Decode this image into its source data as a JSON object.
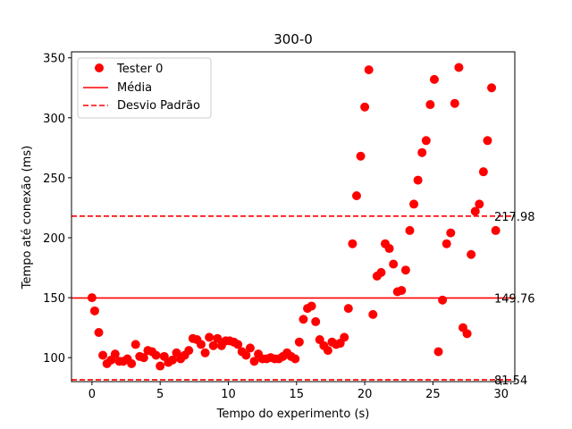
{
  "chart_data": {
    "type": "scatter",
    "title": "300-0",
    "xlabel": "Tempo do experimento (s)",
    "ylabel": "Tempo até conexão (ms)",
    "xlim": [
      -1.5,
      31.0
    ],
    "ylim": [
      80,
      355
    ],
    "xticks": [
      0,
      5,
      10,
      15,
      20,
      25,
      30
    ],
    "yticks": [
      100,
      150,
      200,
      250,
      300,
      350
    ],
    "grid": false,
    "legend_position": "top-left",
    "colors": {
      "points": "#ff0000",
      "lines": "#ff0000"
    },
    "series": [
      {
        "name": "Tester 0",
        "points": [
          [
            0.0,
            150
          ],
          [
            0.2,
            139
          ],
          [
            0.5,
            121
          ],
          [
            0.8,
            102
          ],
          [
            1.1,
            95
          ],
          [
            1.4,
            98
          ],
          [
            1.7,
            103
          ],
          [
            2.0,
            97
          ],
          [
            2.3,
            97
          ],
          [
            2.6,
            99
          ],
          [
            2.9,
            95
          ],
          [
            3.2,
            111
          ],
          [
            3.5,
            101
          ],
          [
            3.8,
            100
          ],
          [
            4.1,
            106
          ],
          [
            4.4,
            105
          ],
          [
            4.7,
            102
          ],
          [
            5.0,
            93
          ],
          [
            5.3,
            101
          ],
          [
            5.6,
            96
          ],
          [
            5.9,
            98
          ],
          [
            6.2,
            104
          ],
          [
            6.5,
            99
          ],
          [
            6.8,
            102
          ],
          [
            7.1,
            106
          ],
          [
            7.4,
            116
          ],
          [
            7.7,
            115
          ],
          [
            8.0,
            111
          ],
          [
            8.3,
            104
          ],
          [
            8.6,
            117
          ],
          [
            8.9,
            110
          ],
          [
            9.2,
            116
          ],
          [
            9.5,
            110
          ],
          [
            9.8,
            114
          ],
          [
            10.1,
            114
          ],
          [
            10.4,
            113
          ],
          [
            10.7,
            111
          ],
          [
            11.0,
            105
          ],
          [
            11.3,
            102
          ],
          [
            11.6,
            108
          ],
          [
            11.9,
            97
          ],
          [
            12.2,
            103
          ],
          [
            12.5,
            99
          ],
          [
            12.8,
            99
          ],
          [
            13.1,
            100
          ],
          [
            13.4,
            99
          ],
          [
            13.7,
            99
          ],
          [
            14.0,
            101
          ],
          [
            14.3,
            104
          ],
          [
            14.6,
            101
          ],
          [
            14.9,
            99
          ],
          [
            15.2,
            113
          ],
          [
            15.5,
            132
          ],
          [
            15.8,
            141
          ],
          [
            16.1,
            143
          ],
          [
            16.4,
            130
          ],
          [
            16.7,
            115
          ],
          [
            17.0,
            110
          ],
          [
            17.3,
            106
          ],
          [
            17.6,
            113
          ],
          [
            17.9,
            111
          ],
          [
            18.2,
            112
          ],
          [
            18.5,
            117
          ],
          [
            18.8,
            141
          ],
          [
            19.1,
            195
          ],
          [
            19.4,
            235
          ],
          [
            19.7,
            268
          ],
          [
            20.0,
            309
          ],
          [
            20.3,
            340
          ],
          [
            20.6,
            136
          ],
          [
            20.9,
            168
          ],
          [
            21.2,
            171
          ],
          [
            21.5,
            195
          ],
          [
            21.8,
            191
          ],
          [
            22.1,
            178
          ],
          [
            22.4,
            155
          ],
          [
            22.7,
            156
          ],
          [
            23.0,
            173
          ],
          [
            23.3,
            206
          ],
          [
            23.6,
            228
          ],
          [
            23.9,
            248
          ],
          [
            24.2,
            271
          ],
          [
            24.5,
            281
          ],
          [
            24.8,
            311
          ],
          [
            25.1,
            332
          ],
          [
            25.4,
            105
          ],
          [
            25.7,
            148
          ],
          [
            26.0,
            195
          ],
          [
            26.3,
            204
          ],
          [
            26.6,
            312
          ],
          [
            26.9,
            342
          ],
          [
            27.2,
            125
          ],
          [
            27.5,
            120
          ],
          [
            27.8,
            186
          ],
          [
            28.1,
            222
          ],
          [
            28.4,
            228
          ],
          [
            28.7,
            255
          ],
          [
            29.0,
            281
          ],
          [
            29.3,
            325
          ],
          [
            29.6,
            206
          ]
        ]
      }
    ],
    "reference_lines": [
      {
        "name": "Média",
        "value": 149.76,
        "label": "149.76",
        "style": "solid"
      },
      {
        "name": "Desvio Padrão",
        "value": 217.98,
        "label": "217.98",
        "style": "dashed"
      },
      {
        "name": "",
        "value": 81.54,
        "label": "81.54",
        "style": "dashed"
      }
    ]
  }
}
